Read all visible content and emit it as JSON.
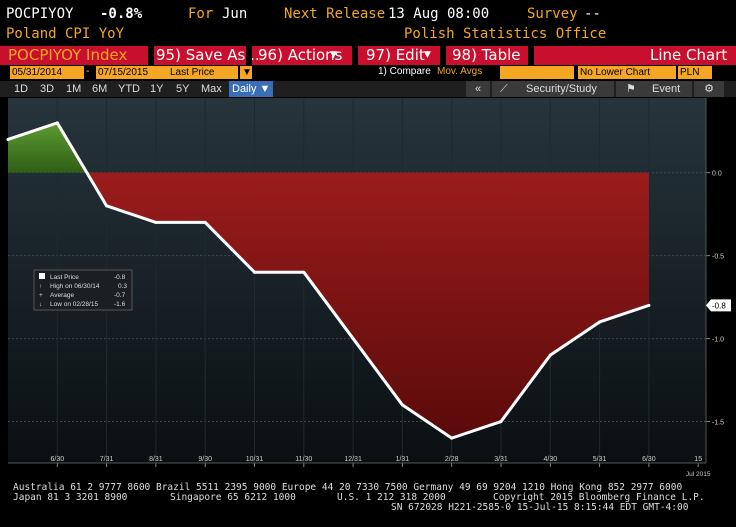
{
  "header": {
    "ticker": "POCPIYOY",
    "last": "-0.8%",
    "name": "Poland CPI YoY",
    "for_label": "For",
    "for_value": "Jun",
    "next_release_label": "Next Release",
    "next_release_value": "13 Aug 08:00",
    "survey_label": "Survey",
    "survey_value": "--",
    "source": "Polish Statistics Office"
  },
  "toolbar": {
    "security": "POCPIYOY Index",
    "save": "95) Save As...",
    "actions": "96) Actions",
    "edit": "97) Edit",
    "table": "98) Table",
    "chart_type": "Line Chart"
  },
  "controls": {
    "start_date": "05/31/2014",
    "dash": "-",
    "end_date": "07/15/2015",
    "field": "Last Price",
    "compare": "1) Compare",
    "compare_opt": "Mov. Avgs",
    "lower_chart": "No Lower Chart",
    "currency": "PLN"
  },
  "tabs": {
    "d1": "1D",
    "d3": "3D",
    "m1": "1M",
    "m6": "6M",
    "ytd": "YTD",
    "y1": "1Y",
    "y5": "5Y",
    "max": "Max",
    "daily": "Daily ▼",
    "back": "«",
    "security_study": "Security/Study",
    "event": "Event"
  },
  "legend": {
    "last_price_label": "Last Price",
    "last_price_value": "-0.8",
    "high_label": "High on 06/30/14",
    "high_value": "0.3",
    "avg_label": "Average",
    "avg_value": "-0.7",
    "low_label": "Low on 02/28/15",
    "low_value": "-1.6"
  },
  "last_tag": "-0.8",
  "colors": {
    "orange": "#f5a623",
    "red_bar": "#c8102e",
    "positive_fill": "#4a8a2a",
    "negative_fill": "#8b1a1a",
    "line": "#ffffff"
  },
  "chart_data": {
    "type": "line",
    "title": "",
    "x": [
      "5/31/14",
      "6/30/14",
      "7/31/14",
      "8/31/14",
      "9/30/14",
      "10/31/14",
      "11/30/14",
      "12/31/14",
      "1/31/15",
      "2/28/15",
      "3/31/15",
      "4/30/15",
      "5/31/15",
      "6/30/15"
    ],
    "values": [
      0.2,
      0.3,
      -0.2,
      -0.3,
      -0.3,
      -0.6,
      -0.6,
      -1.0,
      -1.4,
      -1.6,
      -1.5,
      -1.1,
      -0.9,
      -0.8
    ],
    "x_tick_labels": [
      "6/30",
      "7/31",
      "8/31",
      "9/30",
      "10/31",
      "11/30",
      "12/31",
      "1/31",
      "2/28",
      "3/31",
      "4/30",
      "5/31",
      "6/30",
      "15"
    ],
    "x_year_label": "Jul 2015",
    "y_ticks": [
      "0.0",
      "-0.5",
      "-1.0",
      "-1.5"
    ],
    "y_tick_values": [
      0.0,
      -0.5,
      -1.0,
      -1.5
    ],
    "ylim": [
      -1.75,
      0.45
    ],
    "grid": true
  },
  "footer": {
    "line1": "Australia 61 2 9777 8600 Brazil 5511 2395 9000 Europe 44 20 7330 7500 Germany 49 69 9204 1210 Hong Kong 852 2977 6000",
    "line2_a": "Japan 81 3 3201 8900",
    "line2_b": "Singapore 65 6212 1000",
    "line2_c": "U.S. 1 212 318 2000",
    "line2_d": "Copyright 2015 Bloomberg Finance L.P.",
    "line3": "SN 672028 H221-2585-0 15-Jul-15  8:15:44 EDT  GMT-4:00"
  }
}
